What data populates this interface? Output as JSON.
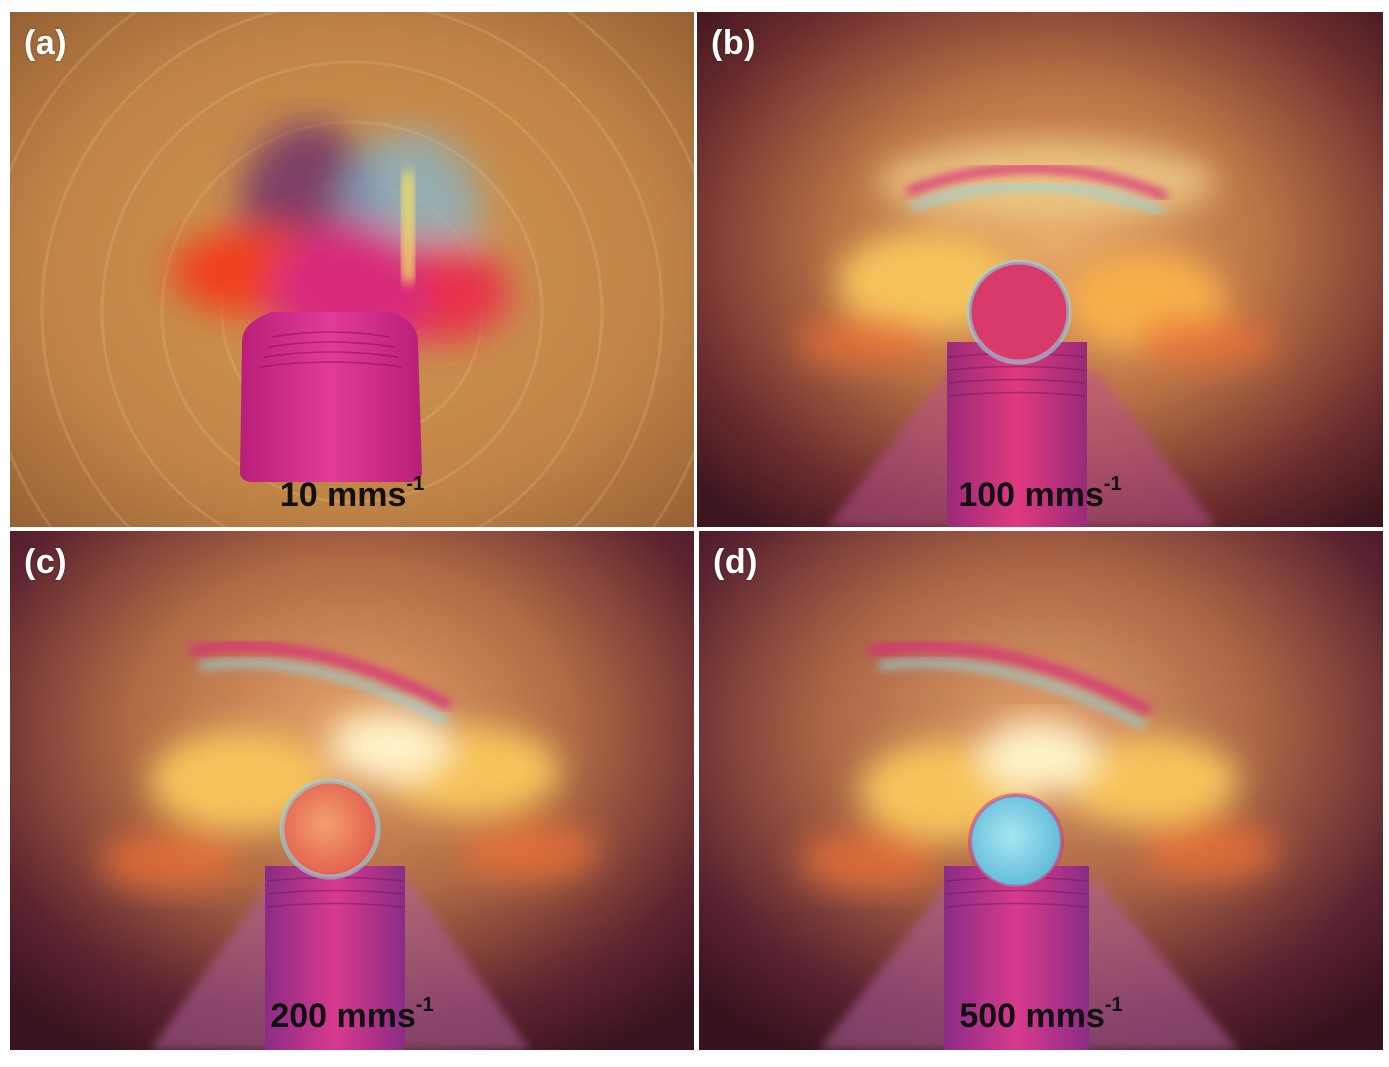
{
  "panels": [
    {
      "letter": "(a)",
      "speed_value": "10 mms",
      "speed_exponent": "-1"
    },
    {
      "letter": "(b)",
      "speed_value": "100 mms",
      "speed_exponent": "-1"
    },
    {
      "letter": "(c)",
      "speed_value": "200 mms",
      "speed_exponent": "-1"
    },
    {
      "letter": "(d)",
      "speed_value": "500 mms",
      "speed_exponent": "-1"
    }
  ],
  "colors": {
    "panel_a_background": "#c4894a",
    "dark_rim": "#3e161e",
    "glow": "#f6c45c",
    "magenta": "#d82a7a",
    "cyan": "#8fd7e8",
    "red_orange": "#f0401e"
  }
}
